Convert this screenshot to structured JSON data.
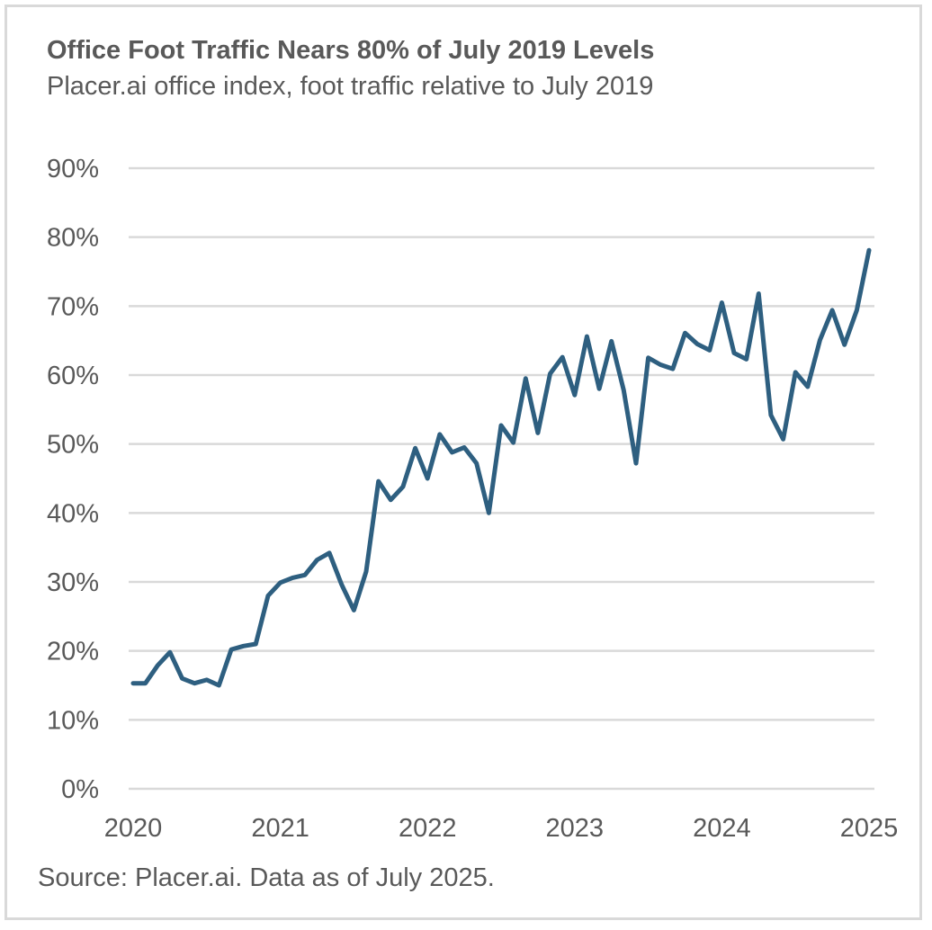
{
  "chart_data": {
    "type": "line",
    "title": "Office Foot Traffic Nears 80% of July 2019 Levels",
    "subtitle": "Placer.ai office index, foot traffic relative to July 2019",
    "source": "Source: Placer.ai. Data as of July 2025.",
    "xlabel": "",
    "ylabel": "",
    "ylim": [
      0,
      90
    ],
    "yticks": [
      0,
      10,
      20,
      30,
      40,
      50,
      60,
      70,
      80,
      90
    ],
    "ytick_labels": [
      "0%",
      "10%",
      "20%",
      "30%",
      "40%",
      "50%",
      "60%",
      "70%",
      "80%",
      "90%"
    ],
    "xtick_labels": [
      "2020",
      "2021",
      "2022",
      "2023",
      "2024",
      "2025"
    ],
    "grid": true,
    "legend": "none",
    "line_color": "#2e5f80",
    "series": [
      {
        "name": "Placer.ai office index",
        "values": [
          15.3,
          15.3,
          17.9,
          19.8,
          16.0,
          15.3,
          15.8,
          15.0,
          20.2,
          20.7,
          21.0,
          28.0,
          29.9,
          30.6,
          31.0,
          33.2,
          34.2,
          29.6,
          25.9,
          31.5,
          44.6,
          41.9,
          43.8,
          49.4,
          45.0,
          51.4,
          48.8,
          49.5,
          47.2,
          40.0,
          52.7,
          50.2,
          59.5,
          51.6,
          60.2,
          62.6,
          57.1,
          65.6,
          58.0,
          64.9,
          57.8,
          47.2,
          62.5,
          61.5,
          60.9,
          66.1,
          64.5,
          63.6,
          70.5,
          63.2,
          62.3,
          71.8,
          54.2,
          50.7,
          60.4,
          58.3,
          65.1,
          69.4,
          64.4,
          69.4,
          78.1
        ]
      }
    ]
  }
}
